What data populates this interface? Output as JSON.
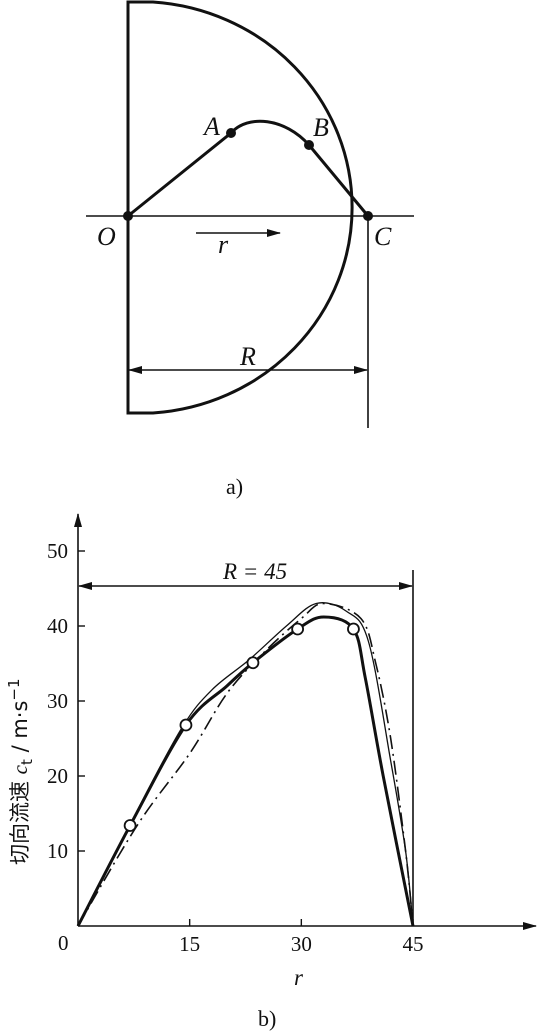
{
  "diagram_a": {
    "points": {
      "O": "O",
      "A": "A",
      "B": "B",
      "C": "C"
    },
    "arrow_label": "r",
    "dimension_label": "R",
    "caption": "a)"
  },
  "chart_data": {
    "type": "line",
    "caption": "b)",
    "annotation": "R = 45",
    "xlabel": "r",
    "ylabel_main": "切向流速 ",
    "ylabel_var": "c",
    "ylabel_sub": "t",
    "ylabel_unit": " / m·s",
    "ylabel_sup": "−1",
    "origin_label": "0",
    "xticks": [
      15,
      30,
      45
    ],
    "yticks": [
      10,
      20,
      30,
      40,
      50
    ],
    "xlim": [
      0,
      60
    ],
    "ylim": [
      0,
      55
    ],
    "grid": false,
    "series": [
      {
        "style": "solid-thick",
        "x": [
          0,
          7,
          14.5,
          20,
          23.5,
          29.5,
          33,
          37,
          38.6,
          41,
          45
        ],
        "y": [
          0,
          13.4,
          26.8,
          32,
          35.1,
          39.6,
          41.2,
          39.6,
          33,
          20,
          0
        ]
      },
      {
        "style": "solid-thin",
        "x": [
          0,
          8,
          14,
          18,
          23,
          28,
          32,
          36,
          39,
          42,
          44,
          45
        ],
        "y": [
          0,
          15.5,
          26.5,
          31.5,
          35.5,
          40,
          43,
          42,
          38,
          22,
          10,
          0
        ]
      },
      {
        "style": "dash-dot",
        "x": [
          0,
          8,
          15,
          20,
          25,
          30,
          33,
          38,
          40,
          42,
          44,
          45
        ],
        "y": [
          0,
          13.5,
          23,
          31,
          36.5,
          41,
          43,
          41,
          35,
          25,
          10,
          0
        ]
      },
      {
        "style": "markers",
        "x": [
          7,
          14.5,
          23.5,
          29.5,
          37
        ],
        "y": [
          13.4,
          26.8,
          35.1,
          39.6,
          39.6
        ]
      }
    ]
  }
}
